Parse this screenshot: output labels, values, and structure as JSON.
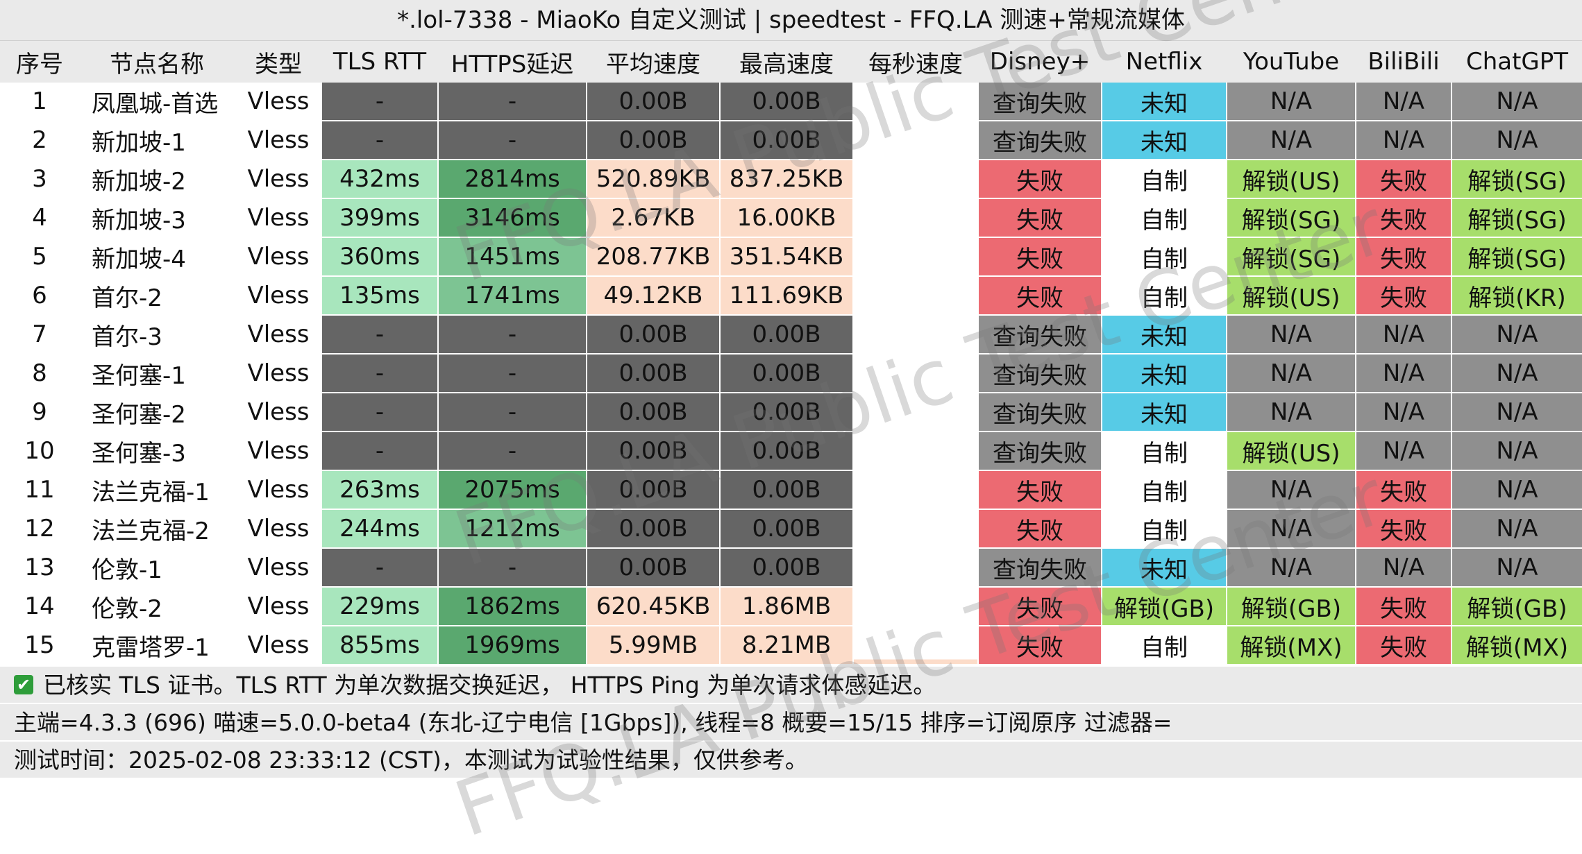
{
  "title": "*.lol-7338 - MiaoKo 自定义测试 | speedtest - FFQ.LA 测速+常规流媒体",
  "columns": [
    {
      "label": "序号",
      "width": 112
    },
    {
      "label": "节点名称",
      "width": 226
    },
    {
      "label": "类型",
      "width": 124
    },
    {
      "label": "TLS RTT",
      "width": 168
    },
    {
      "label": "HTTPS延迟",
      "width": 214
    },
    {
      "label": "平均速度",
      "width": 192
    },
    {
      "label": "最高速度",
      "width": 192
    },
    {
      "label": "每秒速度",
      "width": 180
    },
    {
      "label": "Disney+",
      "width": 178
    },
    {
      "label": "Netflix",
      "width": 180
    },
    {
      "label": "YouTube",
      "width": 186
    },
    {
      "label": "BiliBili",
      "width": 138
    },
    {
      "label": "ChatGPT",
      "width": 189
    }
  ],
  "rows": [
    {
      "id": "1",
      "name": "凤凰城-首选",
      "type": "Vless",
      "tls": "-",
      "https": "-",
      "avg": "0.00B",
      "max": "0.00B",
      "disney": "查询失败",
      "netflix": "未知",
      "youtube": "N/A",
      "bili": "N/A",
      "chatgpt": "N/A"
    },
    {
      "id": "2",
      "name": "新加坡-1",
      "type": "Vless",
      "tls": "-",
      "https": "-",
      "avg": "0.00B",
      "max": "0.00B",
      "disney": "查询失败",
      "netflix": "未知",
      "youtube": "N/A",
      "bili": "N/A",
      "chatgpt": "N/A"
    },
    {
      "id": "3",
      "name": "新加坡-2",
      "type": "Vless",
      "tls": "432ms",
      "https": "2814ms",
      "avg": "520.89KB",
      "max": "837.25KB",
      "disney": "失败",
      "netflix": "自制",
      "youtube": "解锁(US)",
      "bili": "失败",
      "chatgpt": "解锁(SG)"
    },
    {
      "id": "4",
      "name": "新加坡-3",
      "type": "Vless",
      "tls": "399ms",
      "https": "3146ms",
      "avg": "2.67KB",
      "max": "16.00KB",
      "disney": "失败",
      "netflix": "自制",
      "youtube": "解锁(SG)",
      "bili": "失败",
      "chatgpt": "解锁(SG)"
    },
    {
      "id": "5",
      "name": "新加坡-4",
      "type": "Vless",
      "tls": "360ms",
      "https": "1451ms",
      "avg": "208.77KB",
      "max": "351.54KB",
      "disney": "失败",
      "netflix": "自制",
      "youtube": "解锁(SG)",
      "bili": "失败",
      "chatgpt": "解锁(SG)"
    },
    {
      "id": "6",
      "name": "首尔-2",
      "type": "Vless",
      "tls": "135ms",
      "https": "1741ms",
      "avg": "49.12KB",
      "max": "111.69KB",
      "disney": "失败",
      "netflix": "自制",
      "youtube": "解锁(US)",
      "bili": "失败",
      "chatgpt": "解锁(KR)"
    },
    {
      "id": "7",
      "name": "首尔-3",
      "type": "Vless",
      "tls": "-",
      "https": "-",
      "avg": "0.00B",
      "max": "0.00B",
      "disney": "查询失败",
      "netflix": "未知",
      "youtube": "N/A",
      "bili": "N/A",
      "chatgpt": "N/A"
    },
    {
      "id": "8",
      "name": "圣何塞-1",
      "type": "Vless",
      "tls": "-",
      "https": "-",
      "avg": "0.00B",
      "max": "0.00B",
      "disney": "查询失败",
      "netflix": "未知",
      "youtube": "N/A",
      "bili": "N/A",
      "chatgpt": "N/A"
    },
    {
      "id": "9",
      "name": "圣何塞-2",
      "type": "Vless",
      "tls": "-",
      "https": "-",
      "avg": "0.00B",
      "max": "0.00B",
      "disney": "查询失败",
      "netflix": "未知",
      "youtube": "N/A",
      "bili": "N/A",
      "chatgpt": "N/A"
    },
    {
      "id": "10",
      "name": "圣何塞-3",
      "type": "Vless",
      "tls": "-",
      "https": "-",
      "avg": "0.00B",
      "max": "0.00B",
      "disney": "查询失败",
      "netflix": "自制",
      "youtube": "解锁(US)",
      "bili": "N/A",
      "chatgpt": "N/A"
    },
    {
      "id": "11",
      "name": "法兰克福-1",
      "type": "Vless",
      "tls": "263ms",
      "https": "2075ms",
      "avg": "0.00B",
      "max": "0.00B",
      "disney": "失败",
      "netflix": "自制",
      "youtube": "N/A",
      "bili": "失败",
      "chatgpt": "N/A"
    },
    {
      "id": "12",
      "name": "法兰克福-2",
      "type": "Vless",
      "tls": "244ms",
      "https": "1212ms",
      "avg": "0.00B",
      "max": "0.00B",
      "disney": "失败",
      "netflix": "自制",
      "youtube": "N/A",
      "bili": "失败",
      "chatgpt": "N/A"
    },
    {
      "id": "13",
      "name": "伦敦-1",
      "type": "Vless",
      "tls": "-",
      "https": "-",
      "avg": "0.00B",
      "max": "0.00B",
      "disney": "查询失败",
      "netflix": "未知",
      "youtube": "N/A",
      "bili": "N/A",
      "chatgpt": "N/A"
    },
    {
      "id": "14",
      "name": "伦敦-2",
      "type": "Vless",
      "tls": "229ms",
      "https": "1862ms",
      "avg": "620.45KB",
      "max": "1.86MB",
      "disney": "失败",
      "netflix": "解锁(GB)",
      "youtube": "解锁(GB)",
      "bili": "失败",
      "chatgpt": "解锁(GB)"
    },
    {
      "id": "15",
      "name": "克雷塔罗-1",
      "type": "Vless",
      "tls": "855ms",
      "https": "1969ms",
      "avg": "5.99MB",
      "max": "8.21MB",
      "disney": "失败",
      "netflix": "自制",
      "youtube": "解锁(MX)",
      "bili": "失败",
      "chatgpt": "解锁(MX)"
    }
  ],
  "footer": {
    "tls_note": "已核实 TLS 证书。TLS RTT 为单次数据交换延迟，  HTTPS Ping 为单次请求体感延迟。",
    "info": "主端=4.3.3 (696) 喵速=5.0.0-beta4 (东北-辽宁电信 [1Gbps]), 线程=8 概要=15/15 排序=订阅原序 过滤器=",
    "time": "测试时间：2025-02-08 23:33:12 (CST)，本测试为试验性结果，仅供参考。"
  },
  "watermark_text": "FFQ.LA Public Test Center",
  "icons": {
    "tls_check": "check-icon"
  },
  "colors": {
    "gray": "#656565",
    "header_bg": "#eaeaea",
    "tls_green": "#a8e6bd",
    "https_dark_green": "#5aa86f",
    "https_mid_green": "#7dc493",
    "speed_peach": "#fcdcc9",
    "fail_red": "#ec6a72",
    "unknown_cyan": "#57cbe6",
    "unlock_green": "#a7de6b",
    "na_gray": "#8f8f8f"
  }
}
